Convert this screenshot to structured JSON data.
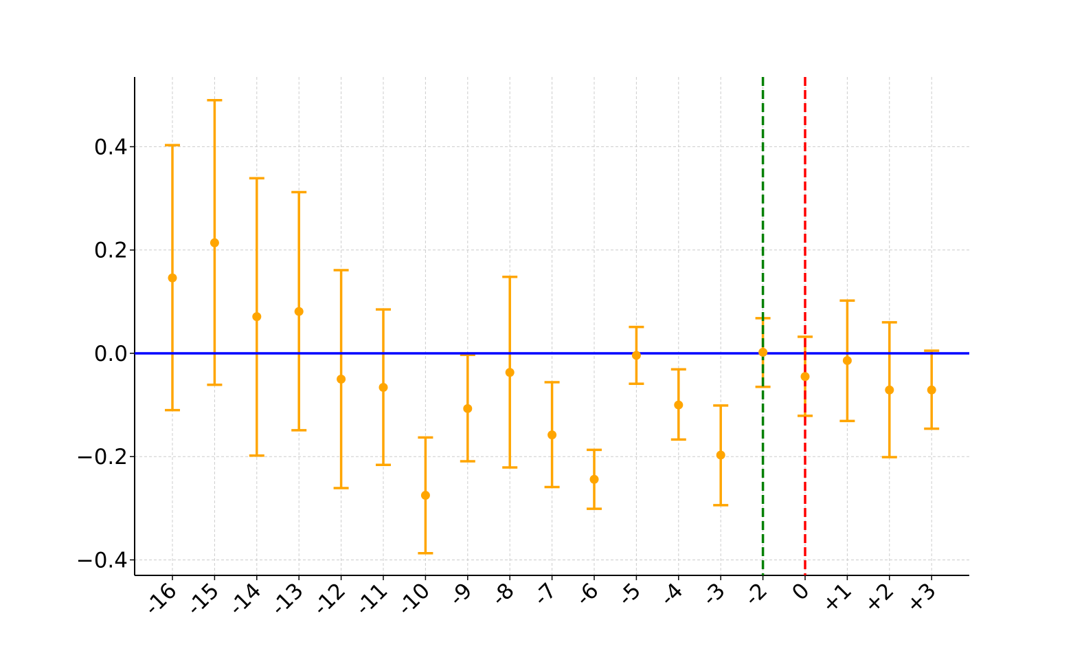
{
  "chart_data": {
    "type": "scatter",
    "title": "",
    "xlabel": "",
    "ylabel": "",
    "categories": [
      "-16",
      "-15",
      "-14",
      "-13",
      "-12",
      "-11",
      "-10",
      "-9",
      "-8",
      "-7",
      "-6",
      "-5",
      "-4",
      "-3",
      "-2",
      "0",
      "+1",
      "+2",
      "+3"
    ],
    "ylim": [
      -0.43,
      0.535
    ],
    "yticks": [
      0.4,
      0.2,
      0.0,
      -0.2,
      -0.4
    ],
    "ytick_labels": [
      "0.4",
      "0.2",
      "0.0",
      "−0.2",
      "−0.4"
    ],
    "grid": true,
    "series": [
      {
        "estimates": [
          0.146,
          0.214,
          0.071,
          0.081,
          -0.05,
          -0.066,
          -0.275,
          -0.107,
          -0.037,
          -0.158,
          -0.244,
          -0.004,
          -0.1,
          -0.197,
          0.002,
          -0.045,
          -0.014,
          -0.071,
          -0.071
        ],
        "ci_lower": [
          -0.11,
          -0.061,
          -0.198,
          -0.149,
          -0.261,
          -0.216,
          -0.387,
          -0.209,
          -0.221,
          -0.259,
          -0.301,
          -0.059,
          -0.167,
          -0.294,
          -0.065,
          -0.121,
          -0.131,
          -0.201,
          -0.146
        ],
        "ci_upper": [
          0.403,
          0.49,
          0.339,
          0.312,
          0.161,
          0.085,
          -0.163,
          -0.003,
          0.148,
          -0.056,
          -0.187,
          0.051,
          -0.031,
          -0.101,
          0.068,
          0.032,
          0.102,
          0.06,
          0.005
        ],
        "color": "#ffa500"
      }
    ],
    "reference_lines": [
      {
        "orientation": "horizontal",
        "value": 0.0,
        "color": "#0000ff",
        "style": "solid"
      },
      {
        "orientation": "vertical",
        "category_index": 14,
        "color": "#008000",
        "style": "dashed"
      },
      {
        "orientation": "vertical",
        "category_index": 15,
        "color": "#ff0000",
        "style": "dashed"
      }
    ],
    "colors": {
      "point": "#ffa500",
      "axis": "#000000",
      "grid": "#cccccc"
    }
  }
}
